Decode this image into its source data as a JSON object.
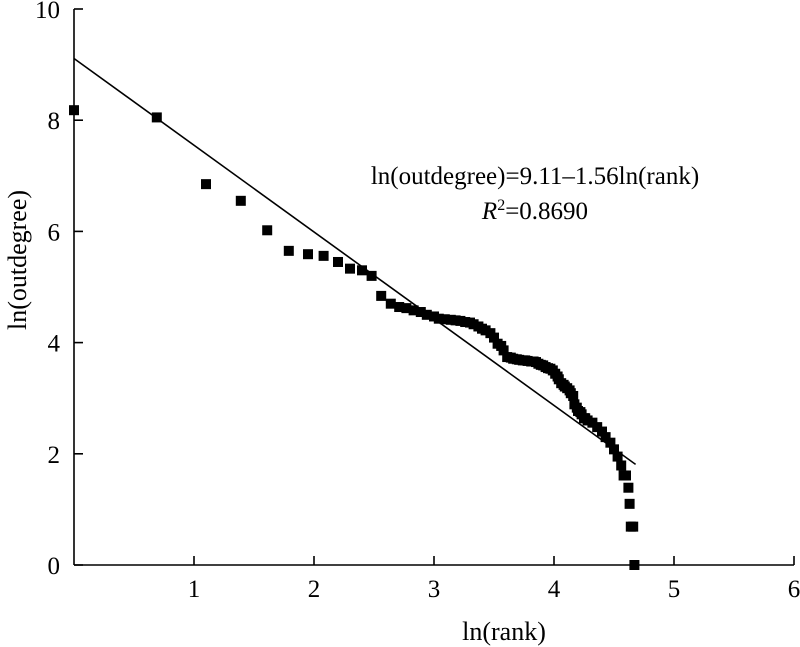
{
  "chart_data": {
    "type": "scatter",
    "xlabel": "ln(rank)",
    "ylabel": "ln(outdegree)",
    "xlim": [
      0,
      6
    ],
    "ylim": [
      0,
      10
    ],
    "x_ticks": [
      1,
      2,
      3,
      4,
      5,
      6
    ],
    "y_ticks": [
      0,
      2,
      4,
      6,
      8,
      10
    ],
    "grid": false,
    "annotation": {
      "equation": "ln(outdegree)=9.11–1.56ln(rank)",
      "r2_symbol": "R",
      "r2_superscript": "2",
      "r2_value": "=0.8690"
    },
    "fit_line": {
      "intercept": 9.11,
      "slope": -1.56,
      "x_range": [
        0,
        4.68
      ]
    },
    "points": [
      [
        0.0,
        8.18
      ],
      [
        0.69,
        8.05
      ],
      [
        1.1,
        6.85
      ],
      [
        1.39,
        6.55
      ],
      [
        1.61,
        6.02
      ],
      [
        1.79,
        5.65
      ],
      [
        1.95,
        5.59
      ],
      [
        2.08,
        5.56
      ],
      [
        2.2,
        5.45
      ],
      [
        2.3,
        5.33
      ],
      [
        2.4,
        5.3
      ],
      [
        2.48,
        5.2
      ],
      [
        2.56,
        4.84
      ],
      [
        2.64,
        4.7
      ],
      [
        2.71,
        4.64
      ],
      [
        2.77,
        4.62
      ],
      [
        2.83,
        4.58
      ],
      [
        2.89,
        4.55
      ],
      [
        2.94,
        4.5
      ],
      [
        3.0,
        4.47
      ],
      [
        3.04,
        4.43
      ],
      [
        3.09,
        4.42
      ],
      [
        3.14,
        4.41
      ],
      [
        3.18,
        4.4
      ],
      [
        3.22,
        4.39
      ],
      [
        3.26,
        4.37
      ],
      [
        3.3,
        4.36
      ],
      [
        3.33,
        4.33
      ],
      [
        3.37,
        4.29
      ],
      [
        3.4,
        4.25
      ],
      [
        3.43,
        4.22
      ],
      [
        3.47,
        4.17
      ],
      [
        3.5,
        4.09
      ],
      [
        3.53,
        3.98
      ],
      [
        3.56,
        3.94
      ],
      [
        3.58,
        3.86
      ],
      [
        3.61,
        3.74
      ],
      [
        3.64,
        3.73
      ],
      [
        3.66,
        3.71
      ],
      [
        3.69,
        3.7
      ],
      [
        3.71,
        3.69
      ],
      [
        3.74,
        3.68
      ],
      [
        3.76,
        3.68
      ],
      [
        3.78,
        3.67
      ],
      [
        3.81,
        3.66
      ],
      [
        3.83,
        3.66
      ],
      [
        3.85,
        3.65
      ],
      [
        3.87,
        3.62
      ],
      [
        3.89,
        3.6
      ],
      [
        3.91,
        3.59
      ],
      [
        3.93,
        3.56
      ],
      [
        3.95,
        3.54
      ],
      [
        3.97,
        3.53
      ],
      [
        3.99,
        3.5
      ],
      [
        4.01,
        3.44
      ],
      [
        4.03,
        3.39
      ],
      [
        4.04,
        3.34
      ],
      [
        4.06,
        3.27
      ],
      [
        4.08,
        3.24
      ],
      [
        4.09,
        3.21
      ],
      [
        4.11,
        3.18
      ],
      [
        4.13,
        3.14
      ],
      [
        4.14,
        3.09
      ],
      [
        4.16,
        3.04
      ],
      [
        4.17,
        2.89
      ],
      [
        4.19,
        2.83
      ],
      [
        4.2,
        2.77
      ],
      [
        4.22,
        2.75
      ],
      [
        4.23,
        2.71
      ],
      [
        4.25,
        2.64
      ],
      [
        4.26,
        2.64
      ],
      [
        4.28,
        2.6
      ],
      [
        4.32,
        2.56
      ],
      [
        4.36,
        2.48
      ],
      [
        4.4,
        2.4
      ],
      [
        4.43,
        2.3
      ],
      [
        4.47,
        2.2
      ],
      [
        4.5,
        2.08
      ],
      [
        4.53,
        1.95
      ],
      [
        4.56,
        1.79
      ],
      [
        4.58,
        1.61
      ],
      [
        4.6,
        1.61
      ],
      [
        4.62,
        1.39
      ],
      [
        4.63,
        1.1
      ],
      [
        4.64,
        0.69
      ],
      [
        4.66,
        0.69
      ],
      [
        4.67,
        0.0
      ]
    ]
  }
}
